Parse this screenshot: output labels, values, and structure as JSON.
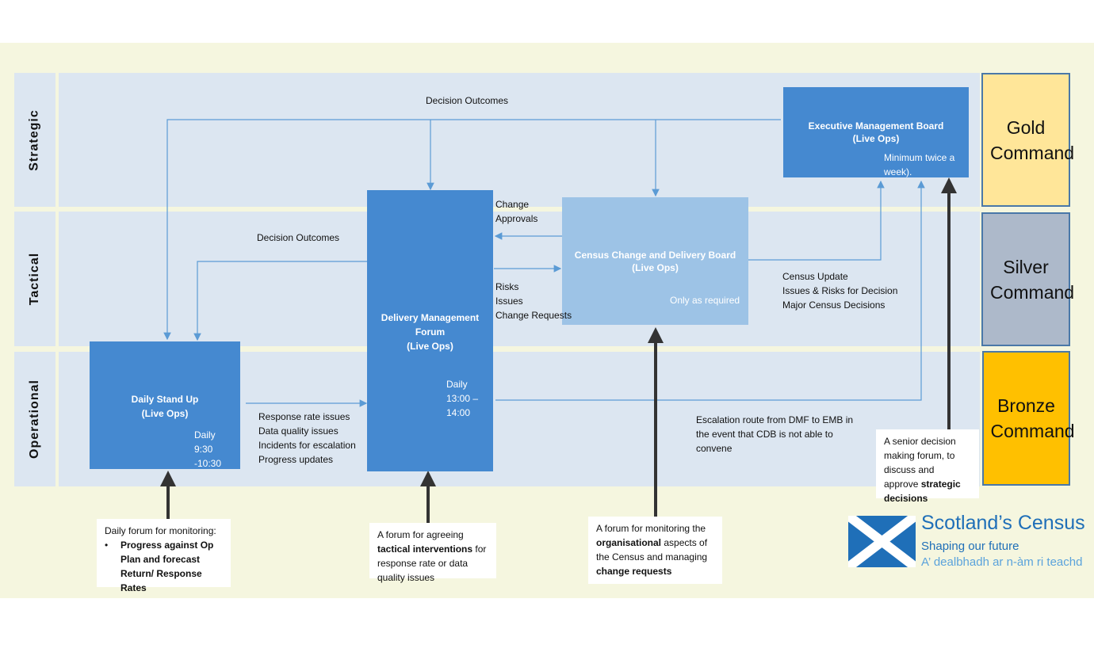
{
  "lanes": {
    "strategic": "Strategic",
    "tactical": "Tactical",
    "operational": "Operational"
  },
  "commands": {
    "gold": "Gold Command",
    "silver": "Silver Command",
    "bronze": "Bronze Command"
  },
  "boxes": {
    "emb": {
      "title": "Executive Management Board",
      "sub": "(Live Ops)",
      "freq": "Minimum twice a week)."
    },
    "ccdb": {
      "title": "Census Change and Delivery Board",
      "sub": "(Live Ops)",
      "freq": "Only as required"
    },
    "dmf": {
      "title": "Delivery Management Forum",
      "sub": "(Live Ops)",
      "freq1": "Daily",
      "freq2": "13:00 –",
      "freq3": "14:00"
    },
    "dsu": {
      "title": "Daily Stand Up",
      "sub": "(Live Ops)",
      "freq1": "Daily",
      "freq2": "9:30 -10:30"
    }
  },
  "labels": {
    "decision_top": "Decision Outcomes",
    "decision_tac": "Decision Outcomes",
    "change_approvals": [
      "Change",
      "Approvals"
    ],
    "risks": [
      "Risks",
      "Issues",
      "Change Requests"
    ],
    "census_update": [
      "Census Update",
      "Issues & Risks for Decision",
      "Major Census Decisions"
    ],
    "dsu_items": [
      "Response rate issues",
      "Data quality issues",
      "Incidents for escalation",
      "Progress updates"
    ],
    "escalation": [
      "Escalation route from DMF to EMB in",
      "the event that CDB is not able to",
      "convene"
    ]
  },
  "callouts": {
    "dsu": {
      "intro": "Daily forum for monitoring:",
      "bullet": "•",
      "bold": "Progress against Op Plan and forecast Return/ Response Rates"
    },
    "dmf": {
      "a": "A forum for agreeing ",
      "b": "tactical interventions",
      "c": " for response rate or data quality issues"
    },
    "ccdb": {
      "a": "A forum for monitoring the ",
      "b": "organisational",
      "c": " aspects of the Census and managing ",
      "d": "change requests"
    },
    "emb": {
      "a": "A senior decision making forum, to discuss and approve ",
      "b": "strategic decisions"
    }
  },
  "logo": {
    "name": "Scotland’s Census",
    "tag1": "Shaping our future",
    "tag2": "A’ dealbhadh ar n-àm ri teachd"
  },
  "colors": {
    "box_dark": "#4589d0",
    "box_light": "#9dc3e6",
    "gold": "#ffe699",
    "silver": "#adb9ca",
    "bronze": "#ffc000",
    "lane": "#dce6f1",
    "brand": "#1f6fb8"
  }
}
